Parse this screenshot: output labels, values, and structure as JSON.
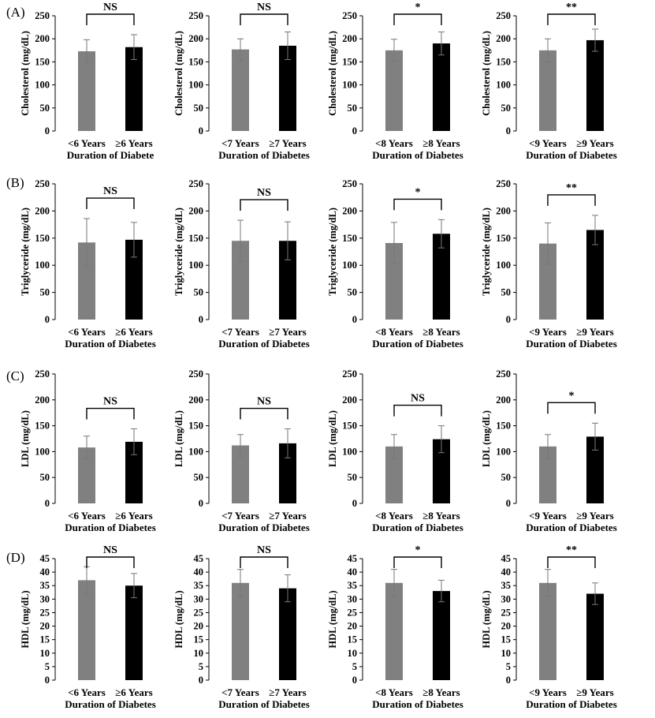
{
  "row_labels": [
    "(A)",
    "(B)",
    "(C)",
    "(D)"
  ],
  "chart_data": [
    {
      "type": "bar",
      "row": 0,
      "col": 0,
      "ylabel": "Cholesterol (mg/dL)",
      "xlabel": "Duration of Diabete",
      "categories": [
        "<6 Years",
        "≥6 Years"
      ],
      "values": [
        173,
        182
      ],
      "errors": [
        25,
        27
      ],
      "colors": [
        "#808080",
        "#000000"
      ],
      "ylim": [
        0,
        250
      ],
      "ticks": [
        0,
        50,
        100,
        150,
        200,
        250
      ],
      "sig": "NS"
    },
    {
      "type": "bar",
      "row": 0,
      "col": 1,
      "ylabel": "Cholesterol (mg/dL)",
      "xlabel": "Duration of Diabetes",
      "categories": [
        "<7 Years",
        "≥7 Years"
      ],
      "values": [
        177,
        185
      ],
      "errors": [
        23,
        30
      ],
      "colors": [
        "#808080",
        "#000000"
      ],
      "ylim": [
        0,
        250
      ],
      "ticks": [
        0,
        50,
        100,
        150,
        200,
        250
      ],
      "sig": "NS"
    },
    {
      "type": "bar",
      "row": 0,
      "col": 2,
      "ylabel": "Cholesterol (mg/dL)",
      "xlabel": "Duration of Diabetes",
      "categories": [
        "<8 Years",
        "≥8 Years"
      ],
      "values": [
        175,
        190
      ],
      "errors": [
        24,
        25
      ],
      "colors": [
        "#808080",
        "#000000"
      ],
      "ylim": [
        0,
        250
      ],
      "ticks": [
        0,
        50,
        100,
        150,
        200,
        250
      ],
      "sig": "*"
    },
    {
      "type": "bar",
      "row": 0,
      "col": 3,
      "ylabel": "Cholesterol (mg/dL)",
      "xlabel": "Duration of Diabetes",
      "categories": [
        "<9 Years",
        "≥9 Years"
      ],
      "values": [
        175,
        197
      ],
      "errors": [
        25,
        24
      ],
      "colors": [
        "#808080",
        "#000000"
      ],
      "ylim": [
        0,
        250
      ],
      "ticks": [
        0,
        50,
        100,
        150,
        200,
        250
      ],
      "sig": "**"
    },
    {
      "type": "bar",
      "row": 1,
      "col": 0,
      "ylabel": "Triglyceride (mg/dL)",
      "xlabel": "Duration of Diabetes",
      "categories": [
        "<6 Years",
        "≥6 Years"
      ],
      "values": [
        142,
        147
      ],
      "errors": [
        44,
        32
      ],
      "colors": [
        "#808080",
        "#000000"
      ],
      "ylim": [
        0,
        250
      ],
      "ticks": [
        0,
        50,
        100,
        150,
        200,
        250
      ],
      "sig": "NS"
    },
    {
      "type": "bar",
      "row": 1,
      "col": 1,
      "ylabel": "Triglyceride (mg/dL)",
      "xlabel": "Duration of Diabetes",
      "categories": [
        "<7 Years",
        "≥7 Years"
      ],
      "values": [
        145,
        145
      ],
      "errors": [
        38,
        35
      ],
      "colors": [
        "#808080",
        "#000000"
      ],
      "ylim": [
        0,
        250
      ],
      "ticks": [
        0,
        50,
        100,
        150,
        200,
        250
      ],
      "sig": "NS"
    },
    {
      "type": "bar",
      "row": 1,
      "col": 2,
      "ylabel": "Triglyceride (mg/dL)",
      "xlabel": "Duration of Diabetes",
      "categories": [
        "<8 Years",
        "≥8 Years"
      ],
      "values": [
        141,
        158
      ],
      "errors": [
        38,
        26
      ],
      "colors": [
        "#808080",
        "#000000"
      ],
      "ylim": [
        0,
        250
      ],
      "ticks": [
        0,
        50,
        100,
        150,
        200,
        250
      ],
      "sig": "*"
    },
    {
      "type": "bar",
      "row": 1,
      "col": 3,
      "ylabel": "Triglyceride (mg/dL)",
      "xlabel": "Duration of Diabetes",
      "categories": [
        "<9 Years",
        "≥9 Years"
      ],
      "values": [
        140,
        165
      ],
      "errors": [
        38,
        27
      ],
      "colors": [
        "#808080",
        "#000000"
      ],
      "ylim": [
        0,
        250
      ],
      "ticks": [
        0,
        50,
        100,
        150,
        200,
        250
      ],
      "sig": "**"
    },
    {
      "type": "bar",
      "row": 2,
      "col": 0,
      "ylabel": "LDL (mg/dL)",
      "xlabel": "Duration of Diabetes",
      "categories": [
        "<6 Years",
        "≥6 Years"
      ],
      "values": [
        108,
        119
      ],
      "errors": [
        22,
        25
      ],
      "colors": [
        "#808080",
        "#000000"
      ],
      "ylim": [
        0,
        250
      ],
      "ticks": [
        0,
        50,
        100,
        150,
        200,
        250
      ],
      "sig": "NS"
    },
    {
      "type": "bar",
      "row": 2,
      "col": 1,
      "ylabel": "LDL (mg/dL)",
      "xlabel": "Duration of Diabetes",
      "categories": [
        "<7 Years",
        "≥7 Years"
      ],
      "values": [
        112,
        116
      ],
      "errors": [
        21,
        28
      ],
      "colors": [
        "#808080",
        "#000000"
      ],
      "ylim": [
        0,
        250
      ],
      "ticks": [
        0,
        50,
        100,
        150,
        200,
        250
      ],
      "sig": "NS"
    },
    {
      "type": "bar",
      "row": 2,
      "col": 2,
      "ylabel": "LDL (mg/dL)",
      "xlabel": "Duration of Diabetes",
      "categories": [
        "<8 Years",
        "≥8 Years"
      ],
      "values": [
        110,
        124
      ],
      "errors": [
        23,
        26
      ],
      "colors": [
        "#808080",
        "#000000"
      ],
      "ylim": [
        0,
        250
      ],
      "ticks": [
        0,
        50,
        100,
        150,
        200,
        250
      ],
      "sig": "NS"
    },
    {
      "type": "bar",
      "row": 2,
      "col": 3,
      "ylabel": "LDL (mg/dL)",
      "xlabel": "Duration of Diabetes",
      "categories": [
        "<9 Years",
        "≥9 Years"
      ],
      "values": [
        110,
        129
      ],
      "errors": [
        23,
        26
      ],
      "colors": [
        "#808080",
        "#000000"
      ],
      "ylim": [
        0,
        250
      ],
      "ticks": [
        0,
        50,
        100,
        150,
        200,
        250
      ],
      "sig": "*"
    },
    {
      "type": "bar",
      "row": 3,
      "col": 0,
      "ylabel": "HDL (mg/dL)",
      "xlabel": "Duration of Diabetes",
      "categories": [
        "<6 Years",
        "≥6 Years"
      ],
      "values": [
        37,
        35
      ],
      "errors": [
        5,
        4.5
      ],
      "colors": [
        "#808080",
        "#000000"
      ],
      "ylim": [
        0,
        45
      ],
      "ticks": [
        0,
        5,
        10,
        15,
        20,
        25,
        30,
        35,
        40,
        45
      ],
      "sig": "NS"
    },
    {
      "type": "bar",
      "row": 3,
      "col": 1,
      "ylabel": "HDL (mg/dL)",
      "xlabel": "Duration of Diabetes",
      "categories": [
        "<7 Years",
        "≥7 Years"
      ],
      "values": [
        36,
        34
      ],
      "errors": [
        5,
        5
      ],
      "colors": [
        "#808080",
        "#000000"
      ],
      "ylim": [
        0,
        45
      ],
      "ticks": [
        0,
        5,
        10,
        15,
        20,
        25,
        30,
        35,
        40,
        45
      ],
      "sig": "NS"
    },
    {
      "type": "bar",
      "row": 3,
      "col": 2,
      "ylabel": "HDL (mg/dL)",
      "xlabel": "Duration of Diabetes",
      "categories": [
        "<8 Years",
        "≥8 Years"
      ],
      "values": [
        36,
        33
      ],
      "errors": [
        5,
        4
      ],
      "colors": [
        "#808080",
        "#000000"
      ],
      "ylim": [
        0,
        45
      ],
      "ticks": [
        0,
        5,
        10,
        15,
        20,
        25,
        30,
        35,
        40,
        45
      ],
      "sig": "*"
    },
    {
      "type": "bar",
      "row": 3,
      "col": 3,
      "ylabel": "HDL (mg/dL)",
      "xlabel": "Duration of Diabetes",
      "categories": [
        "<9 Years",
        "≥9 Years"
      ],
      "values": [
        36,
        32
      ],
      "errors": [
        5,
        4
      ],
      "colors": [
        "#808080",
        "#000000"
      ],
      "ylim": [
        0,
        45
      ],
      "ticks": [
        0,
        5,
        10,
        15,
        20,
        25,
        30,
        35,
        40,
        45
      ],
      "sig": "**"
    }
  ]
}
